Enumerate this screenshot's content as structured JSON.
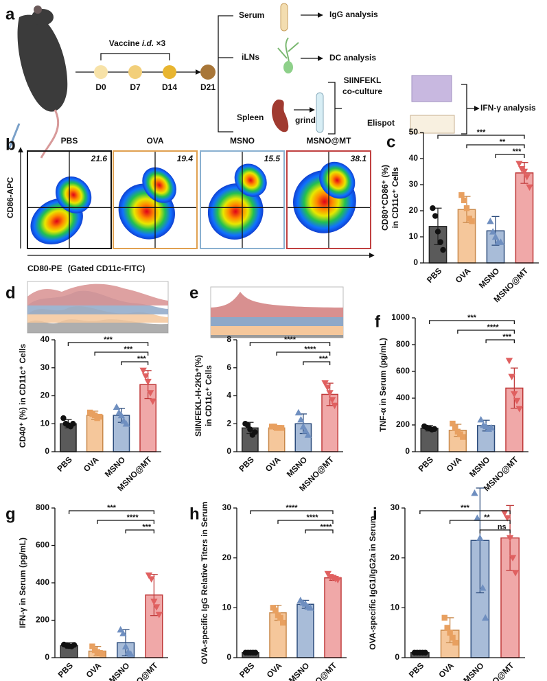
{
  "diagram": {
    "panel": "a",
    "vaccine": [
      "Vaccine ",
      "i.d.",
      " ×3"
    ],
    "days": [
      "D0",
      "D7",
      "D14",
      "D21"
    ],
    "tissues": [
      "Serum",
      "iLNs",
      "Spleen"
    ],
    "analyses": [
      "IgG analysis",
      "DC analysis"
    ],
    "grind": "grind",
    "coculture": [
      "SIINFEKL",
      "co-culture"
    ],
    "elispot": "Elispot",
    "ifn": "IFN-γ analysis"
  },
  "flow": {
    "panel": "b",
    "ylabel": "CD86-APC",
    "xlabel": "CD80-PE",
    "gate": "(Gated CD11c-FITC)",
    "panels": [
      {
        "title": "PBS",
        "value": 21.6,
        "color": "#111111"
      },
      {
        "title": "OVA",
        "value": 19.4,
        "color": "#e0a050"
      },
      {
        "title": "MSNO",
        "value": 15.5,
        "color": "#8ab0d0"
      },
      {
        "title": "MSNO@MT",
        "value": 38.1,
        "color": "#c04040"
      }
    ]
  },
  "chart_data": [
    {
      "type": "bar",
      "panel": "c",
      "ylabel": [
        "CD80⁺CD86⁺ (%)",
        "in CD11c⁺ Cells"
      ],
      "categories": [
        "PBS",
        "OVA",
        "MSNO",
        "MSNO@MT"
      ],
      "values": [
        14,
        20.5,
        12.3,
        34.5
      ],
      "errors": [
        7,
        5,
        5.5,
        4
      ],
      "points": [
        [
          21,
          18,
          12,
          8,
          5
        ],
        [
          26,
          24,
          21,
          17,
          16
        ],
        [
          16,
          12,
          10,
          8,
          8
        ],
        [
          38,
          36,
          35,
          33,
          29
        ]
      ],
      "colors": [
        "#5a5a5a",
        "#f5c79b",
        "#a8bcd8",
        "#f0a8a8"
      ],
      "edge_colors": [
        "#222222",
        "#c8884a",
        "#2c4c7c",
        "#c03a3a"
      ],
      "point_colors": [
        "#111111",
        "#e8a060",
        "#6f8fc0",
        "#e06060"
      ],
      "markers": [
        "circle",
        "square",
        "triangle",
        "triangle-down"
      ],
      "ylim": [
        0,
        50
      ],
      "yticks": [
        0,
        10,
        20,
        30,
        40,
        50
      ],
      "annotations": [
        {
          "from": "PBS",
          "to": "MSNO@MT",
          "label": "***"
        },
        {
          "from": "OVA",
          "to": "MSNO@MT",
          "label": "**"
        },
        {
          "from": "MSNO",
          "to": "MSNO@MT",
          "label": "***"
        }
      ]
    },
    {
      "type": "bar",
      "panel": "d",
      "ylabel": [
        "CD40⁺ (%) in CD11c⁺ Cells"
      ],
      "categories": [
        "PBS",
        "OVA",
        "MSNO",
        "MSNO@MT"
      ],
      "values": [
        10,
        13,
        13,
        24
      ],
      "errors": [
        1.5,
        1.5,
        2.5,
        5
      ],
      "points": [
        [
          12,
          10,
          9.5,
          9,
          10
        ],
        [
          14,
          13.5,
          13,
          12,
          12.5
        ],
        [
          16,
          14,
          13,
          11,
          10
        ],
        [
          29,
          27,
          25,
          21,
          18
        ]
      ],
      "colors": [
        "#5a5a5a",
        "#f5c79b",
        "#a8bcd8",
        "#f0a8a8"
      ],
      "edge_colors": [
        "#222222",
        "#c8884a",
        "#2c4c7c",
        "#c03a3a"
      ],
      "point_colors": [
        "#111111",
        "#e8a060",
        "#6f8fc0",
        "#e06060"
      ],
      "markers": [
        "circle",
        "square",
        "triangle",
        "triangle-down"
      ],
      "ylim": [
        0,
        40
      ],
      "yticks": [
        0,
        10,
        20,
        30,
        40
      ],
      "annotations": [
        {
          "from": "PBS",
          "to": "MSNO@MT",
          "label": "***"
        },
        {
          "from": "OVA",
          "to": "MSNO@MT",
          "label": "***"
        },
        {
          "from": "MSNO",
          "to": "MSNO@MT",
          "label": "***"
        }
      ]
    },
    {
      "type": "bar",
      "panel": "e",
      "ylabel": [
        "SIINFEKL-H-2Kb⁺(%)",
        "in CD11c⁺ Cells"
      ],
      "categories": [
        "PBS",
        "OVA",
        "MSNO",
        "MSNO@MT"
      ],
      "values": [
        1.7,
        1.7,
        2.0,
        4.1
      ],
      "errors": [
        0.4,
        0.1,
        0.7,
        0.8
      ],
      "points": [
        [
          2.0,
          1.9,
          1.6,
          1.2,
          1.4
        ],
        [
          1.8,
          1.8,
          1.7,
          1.7,
          1.7
        ],
        [
          2.8,
          2.3,
          1.8,
          1.5,
          1.2
        ],
        [
          4.9,
          4.6,
          4.2,
          3.7,
          3.3
        ]
      ],
      "colors": [
        "#5a5a5a",
        "#f5c79b",
        "#a8bcd8",
        "#f0a8a8"
      ],
      "edge_colors": [
        "#222222",
        "#c8884a",
        "#2c4c7c",
        "#c03a3a"
      ],
      "point_colors": [
        "#111111",
        "#e8a060",
        "#6f8fc0",
        "#e06060"
      ],
      "markers": [
        "circle",
        "square",
        "triangle",
        "triangle-down"
      ],
      "ylim": [
        0,
        8
      ],
      "yticks": [
        0,
        2,
        4,
        6,
        8
      ],
      "annotations": [
        {
          "from": "PBS",
          "to": "MSNO@MT",
          "label": "****"
        },
        {
          "from": "OVA",
          "to": "MSNO@MT",
          "label": "****"
        },
        {
          "from": "MSNO",
          "to": "MSNO@MT",
          "label": "***"
        }
      ]
    },
    {
      "type": "bar",
      "panel": "f",
      "ylabel": [
        "TNF-α in Serum (pg/mL)"
      ],
      "categories": [
        "PBS",
        "OVA",
        "MSNO",
        "MSNO@MT"
      ],
      "values": [
        175,
        160,
        195,
        475
      ],
      "errors": [
        20,
        45,
        40,
        150
      ],
      "points": [
        [
          190,
          180,
          175,
          165,
          170
        ],
        [
          210,
          180,
          150,
          130,
          110
        ],
        [
          240,
          200,
          190,
          170,
          180
        ],
        [
          680,
          560,
          430,
          380,
          320
        ]
      ],
      "colors": [
        "#5a5a5a",
        "#f5c79b",
        "#a8bcd8",
        "#f0a8a8"
      ],
      "edge_colors": [
        "#222222",
        "#c8884a",
        "#2c4c7c",
        "#c03a3a"
      ],
      "point_colors": [
        "#111111",
        "#e8a060",
        "#6f8fc0",
        "#e06060"
      ],
      "markers": [
        "circle",
        "square",
        "triangle",
        "triangle-down"
      ],
      "ylim": [
        0,
        1000
      ],
      "yticks": [
        0,
        200,
        400,
        600,
        800,
        1000
      ],
      "annotations": [
        {
          "from": "PBS",
          "to": "MSNO@MT",
          "label": "***"
        },
        {
          "from": "OVA",
          "to": "MSNO@MT",
          "label": "****"
        },
        {
          "from": "MSNO",
          "to": "MSNO@MT",
          "label": "***"
        }
      ]
    },
    {
      "type": "bar",
      "panel": "g",
      "ylabel": [
        "IFN-γ in Serum (pg/mL)"
      ],
      "categories": [
        "PBS",
        "OVA",
        "MSNO",
        "MSNO@MT"
      ],
      "values": [
        65,
        35,
        80,
        335
      ],
      "errors": [
        15,
        25,
        70,
        110
      ],
      "points": [
        [
          70,
          65,
          62,
          60,
          68
        ],
        [
          60,
          40,
          30,
          25,
          20
        ],
        [
          150,
          130,
          60,
          30,
          20
        ],
        [
          440,
          420,
          300,
          270,
          230
        ]
      ],
      "colors": [
        "#5a5a5a",
        "#f5c79b",
        "#a8bcd8",
        "#f0a8a8"
      ],
      "edge_colors": [
        "#222222",
        "#c8884a",
        "#2c4c7c",
        "#c03a3a"
      ],
      "point_colors": [
        "#111111",
        "#e8a060",
        "#6f8fc0",
        "#e06060"
      ],
      "markers": [
        "circle",
        "square",
        "triangle",
        "triangle-down"
      ],
      "ylim": [
        0,
        800
      ],
      "yticks": [
        0,
        200,
        400,
        600,
        800
      ],
      "annotations": [
        {
          "from": "PBS",
          "to": "MSNO@MT",
          "label": "***"
        },
        {
          "from": "OVA",
          "to": "MSNO@MT",
          "label": "****"
        },
        {
          "from": "MSNO",
          "to": "MSNO@MT",
          "label": "***"
        }
      ]
    },
    {
      "type": "bar",
      "panel": "h",
      "ylabel": [
        "OVA-specific IgG Relative Titers in Serum"
      ],
      "categories": [
        "PBS",
        "OVA",
        "MSNO",
        "MSNO@MT"
      ],
      "values": [
        1,
        9,
        10.7,
        16
      ],
      "errors": [
        0.2,
        1.5,
        0.8,
        0.5
      ],
      "points": [
        [
          1,
          1,
          1,
          1,
          1
        ],
        [
          10,
          9.5,
          8.5,
          8,
          7
        ],
        [
          11.5,
          11,
          10.8,
          10.2,
          10
        ],
        [
          16.8,
          16.2,
          16,
          15.8,
          15.6
        ]
      ],
      "colors": [
        "#5a5a5a",
        "#f5c79b",
        "#a8bcd8",
        "#f0a8a8"
      ],
      "edge_colors": [
        "#222222",
        "#c8884a",
        "#2c4c7c",
        "#c03a3a"
      ],
      "point_colors": [
        "#111111",
        "#e8a060",
        "#6f8fc0",
        "#e06060"
      ],
      "markers": [
        "circle",
        "square",
        "triangle",
        "triangle-down"
      ],
      "ylim": [
        0,
        30
      ],
      "yticks": [
        0,
        10,
        20,
        30
      ],
      "annotations": [
        {
          "from": "PBS",
          "to": "MSNO@MT",
          "label": "****"
        },
        {
          "from": "OVA",
          "to": "MSNO@MT",
          "label": "****"
        },
        {
          "from": "MSNO",
          "to": "MSNO@MT",
          "label": "****"
        }
      ]
    },
    {
      "type": "bar",
      "panel": "i",
      "ylabel": [
        "OVA-specific IgG1/IgG2a in Serum"
      ],
      "categories": [
        "PBS",
        "OVA",
        "MSNO",
        "MSNO@MT"
      ],
      "values": [
        1,
        5.5,
        23.5,
        24
      ],
      "errors": [
        0.3,
        2.5,
        10.5,
        6.5
      ],
      "points": [
        [
          1,
          1,
          1,
          1,
          1
        ],
        [
          8,
          6,
          5,
          4,
          3
        ],
        [
          33,
          28,
          24,
          14,
          8
        ],
        [
          29,
          28,
          24,
          20,
          17
        ]
      ],
      "colors": [
        "#5a5a5a",
        "#f5c79b",
        "#a8bcd8",
        "#f0a8a8"
      ],
      "edge_colors": [
        "#222222",
        "#c8884a",
        "#2c4c7c",
        "#c03a3a"
      ],
      "point_colors": [
        "#111111",
        "#e8a060",
        "#6f8fc0",
        "#e06060"
      ],
      "markers": [
        "circle",
        "square",
        "triangle",
        "triangle-down"
      ],
      "ylim": [
        0,
        30
      ],
      "yticks": [
        0,
        10,
        20,
        30
      ],
      "annotations": [
        {
          "from": "PBS",
          "to": "MSNO@MT",
          "label": "***"
        },
        {
          "from": "OVA",
          "to": "MSNO@MT",
          "label": "**"
        },
        {
          "from": "MSNO",
          "to": "MSNO@MT",
          "label": "ns"
        }
      ]
    }
  ]
}
